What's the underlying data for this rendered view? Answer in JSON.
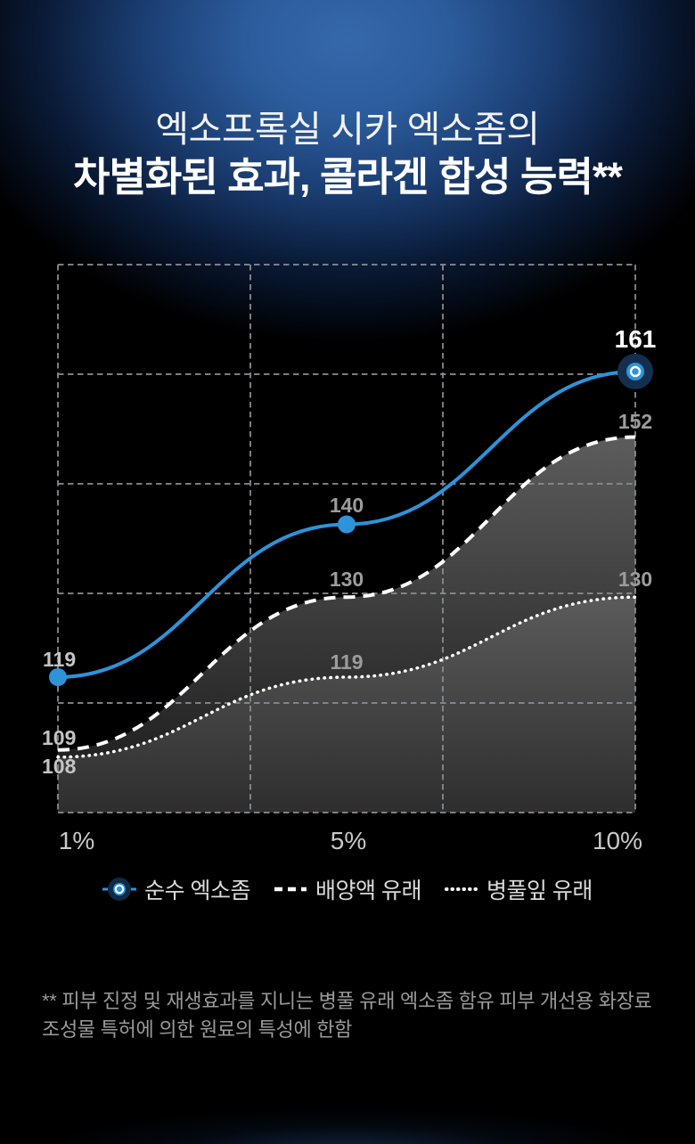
{
  "title": {
    "line1": "엑소프록실 시카 엑소좀의",
    "line2": "차별화된 효과, 콜라겐 합성 능력**"
  },
  "chart_data": {
    "type": "line",
    "categories": [
      "1%",
      "5%",
      "10%"
    ],
    "series": [
      {
        "name": "순수 엑소좀",
        "style": "solid",
        "color": "#2E93D9",
        "markers": true,
        "area": false,
        "values": [
          119,
          140,
          161
        ]
      },
      {
        "name": "배양액 유래",
        "style": "dashed",
        "color": "#FFFFFF",
        "markers": false,
        "area": true,
        "values": [
          109,
          130,
          152
        ]
      },
      {
        "name": "병풀잎 유래",
        "style": "dotted",
        "color": "#FFFFFF",
        "markers": false,
        "area": true,
        "values": [
          108,
          119,
          130
        ]
      }
    ],
    "ylim": [
      100,
      176
    ],
    "grid": {
      "style": "dashed",
      "columns": 3,
      "rows": 5
    },
    "legend_position": "bottom",
    "point_labels_visible": true,
    "highlight": {
      "series": 0,
      "point": 2,
      "value": 161
    }
  },
  "footnote": "** 피부 진정 및 재생효과를 지니는 병풀 유래 엑소좀 함유 피부 개선용 화장료 조성물 특허에 의한 원료의 특성에 한함",
  "colors": {
    "accent_blue": "#2E93D9",
    "glow_blue": "#2F62A4",
    "label_gray": "#9C9C9C",
    "label_white": "#FFFFFF",
    "area_gray_top": "#686868",
    "area_gray_bottom": "#181818"
  }
}
